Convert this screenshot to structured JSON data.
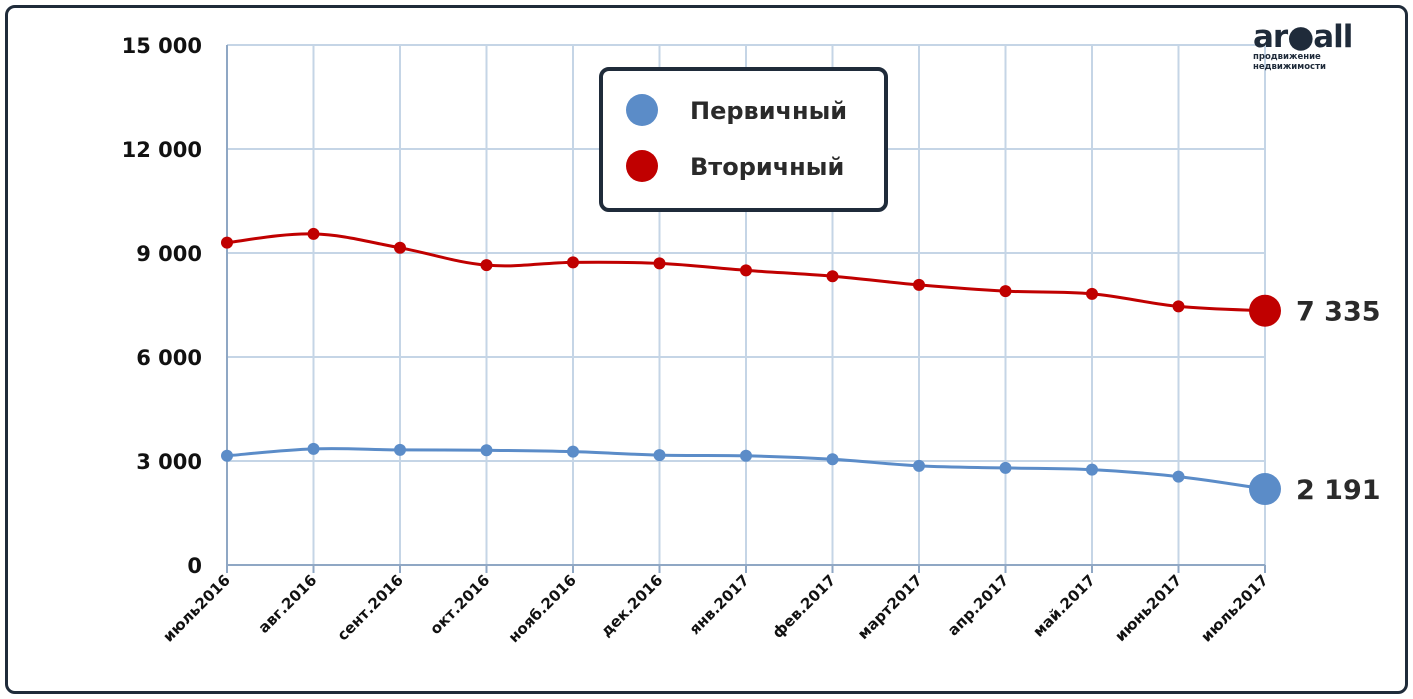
{
  "logo": {
    "word": "ar●all",
    "sub1": "продвижение",
    "sub2": "недвижимости"
  },
  "chart_data": {
    "type": "line",
    "categories": [
      "июль2016",
      "авг.2016",
      "сент.2016",
      "окт.2016",
      "нояб.2016",
      "дек.2016",
      "янв.2017",
      "фев.2017",
      "март2017",
      "апр.2017",
      "май.2017",
      "июнь2017",
      "июль2017"
    ],
    "y_ticks": [
      "0",
      "3 000",
      "6 000",
      "9 000",
      "12 000",
      "15 000"
    ],
    "ylim": [
      0,
      15000
    ],
    "grid": true,
    "legend_position": "top-center",
    "series": [
      {
        "name": "Первичный",
        "color": "#5b8cc8",
        "values": [
          3150,
          3350,
          3320,
          3310,
          3270,
          3170,
          3150,
          3050,
          2860,
          2800,
          2750,
          2550,
          2191
        ],
        "end_label": "2 191"
      },
      {
        "name": "Вторичный",
        "color": "#c00000",
        "values": [
          9300,
          9550,
          9150,
          8650,
          8730,
          8700,
          8500,
          8330,
          8080,
          7900,
          7820,
          7460,
          7335
        ],
        "end_label": "7 335"
      }
    ]
  }
}
